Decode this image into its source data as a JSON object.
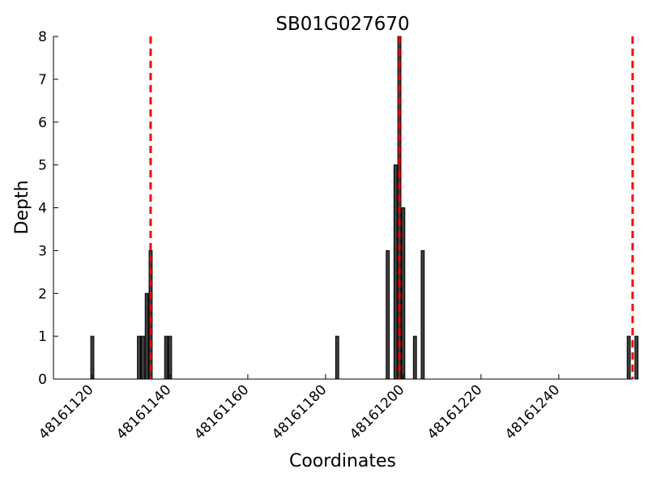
{
  "chart_data": {
    "type": "bar",
    "title": "SB01G027670",
    "xlabel": "Coordinates",
    "ylabel": "Depth",
    "xlim": [
      48161110,
      48161259
    ],
    "ylim": [
      0,
      8
    ],
    "x_ticks": [
      48161120,
      48161140,
      48161160,
      48161180,
      48161200,
      48161220,
      48161240
    ],
    "y_ticks": [
      0,
      1,
      2,
      3,
      4,
      5,
      6,
      7,
      8
    ],
    "grid": false,
    "bar_color": "#404040",
    "bars": [
      {
        "x": 48161120,
        "value": 1
      },
      {
        "x": 48161132,
        "value": 1
      },
      {
        "x": 48161133,
        "value": 1
      },
      {
        "x": 48161134,
        "value": 2
      },
      {
        "x": 48161135,
        "value": 3
      },
      {
        "x": 48161139,
        "value": 1
      },
      {
        "x": 48161140,
        "value": 1
      },
      {
        "x": 48161183,
        "value": 1
      },
      {
        "x": 48161196,
        "value": 3
      },
      {
        "x": 48161198,
        "value": 5
      },
      {
        "x": 48161199,
        "value": 8
      },
      {
        "x": 48161200,
        "value": 4
      },
      {
        "x": 48161203,
        "value": 1
      },
      {
        "x": 48161205,
        "value": 3
      },
      {
        "x": 48161258,
        "value": 1
      },
      {
        "x": 48161260,
        "value": 1
      }
    ],
    "reference_lines": {
      "color": "#ff0000",
      "style": "dashed",
      "x": [
        48161135,
        48161199,
        48161259
      ]
    }
  }
}
